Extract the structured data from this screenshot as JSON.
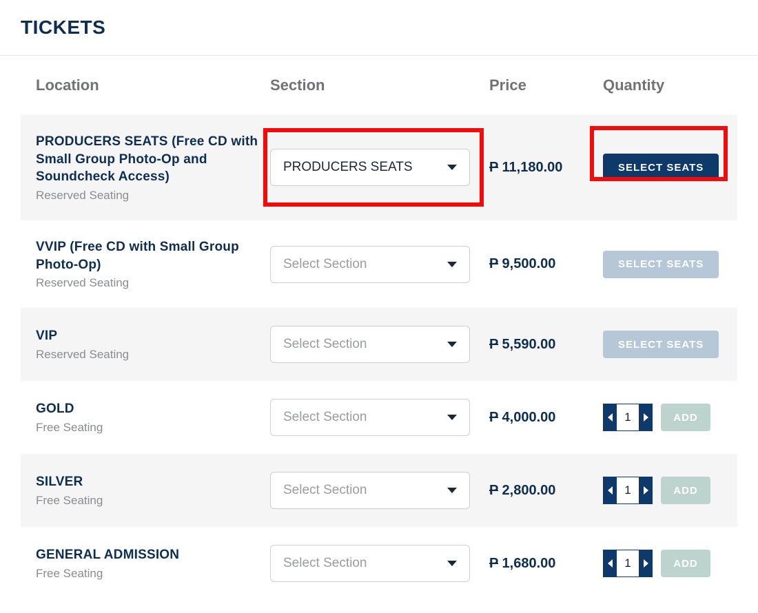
{
  "title": "TICKETS",
  "headers": {
    "location": "Location",
    "section": "Section",
    "price": "Price",
    "quantity": "Quantity"
  },
  "placeholder": "Select Section",
  "colors": {
    "primary": "#0d3a6b",
    "disabled_btn": "#b6c8d8",
    "add_btn": "#bcd4cd",
    "highlight": "#f30b0b",
    "shade_row": "#f5f5f5",
    "text_dark": "#0d2e52",
    "text_muted": "#8a8c8f"
  },
  "rows": [
    {
      "name": "PRODUCERS SEATS (Free CD with Small Group Photo-Op and Soundcheck Access)",
      "sub": "Reserved Seating",
      "section_value": "PRODUCERS SEATS",
      "section_is_placeholder": false,
      "price": "11,180.00",
      "action_type": "select",
      "action_label": "SELECT SEATS",
      "action_enabled": true,
      "shade": true,
      "highlight_dropdown": true,
      "highlight_button": true
    },
    {
      "name": "VVIP (Free CD with Small Group Photo-Op)",
      "sub": "Reserved Seating",
      "section_value": "Select Section",
      "section_is_placeholder": true,
      "price": "9,500.00",
      "action_type": "select",
      "action_label": "SELECT SEATS",
      "action_enabled": false,
      "shade": false
    },
    {
      "name": "VIP",
      "sub": "Reserved Seating",
      "section_value": "Select Section",
      "section_is_placeholder": true,
      "price": "5,590.00",
      "action_type": "select",
      "action_label": "SELECT SEATS",
      "action_enabled": false,
      "shade": true
    },
    {
      "name": "GOLD",
      "sub": "Free Seating",
      "section_value": "Select Section",
      "section_is_placeholder": true,
      "price": "4,000.00",
      "action_type": "add",
      "action_label": "ADD",
      "quantity": "1",
      "shade": false
    },
    {
      "name": "SILVER",
      "sub": "Free Seating",
      "section_value": "Select Section",
      "section_is_placeholder": true,
      "price": "2,800.00",
      "action_type": "add",
      "action_label": "ADD",
      "quantity": "1",
      "shade": true
    },
    {
      "name": "GENERAL ADMISSION",
      "sub": "Free Seating",
      "section_value": "Select Section",
      "section_is_placeholder": true,
      "price": "1,680.00",
      "action_type": "add",
      "action_label": "ADD",
      "quantity": "1",
      "shade": false
    }
  ]
}
